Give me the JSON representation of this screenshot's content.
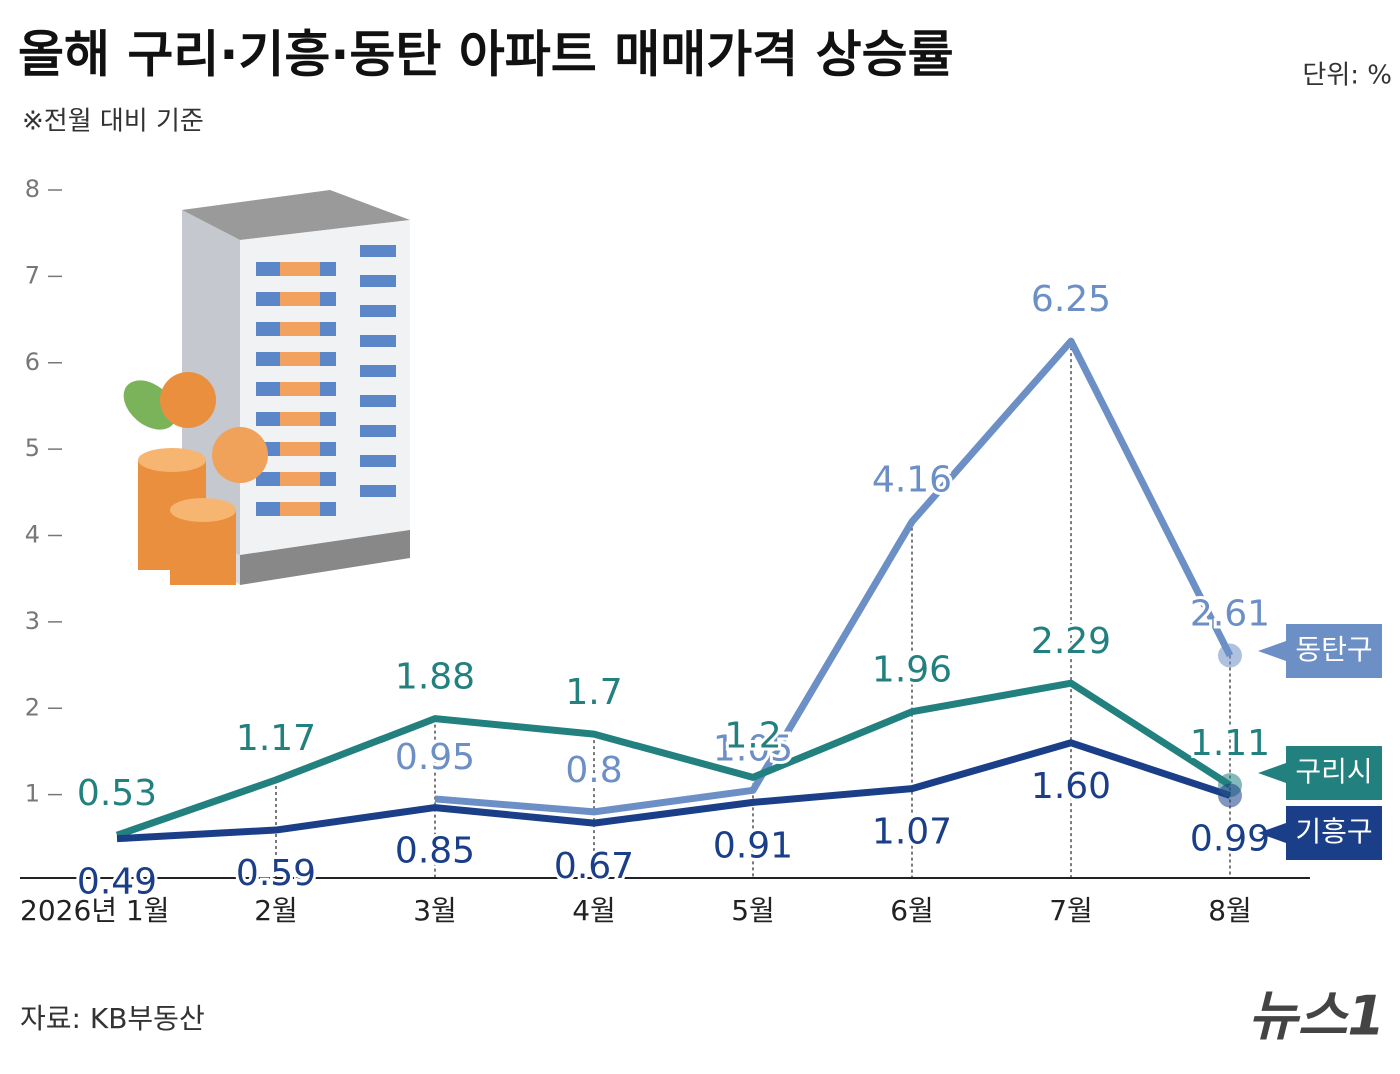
{
  "chart_data": {
    "type": "line",
    "title": "올해 구리·기흥·동탄 아파트 매매가격 상승률",
    "subtitle": "※전월 대비 기준",
    "unit": "단위: %",
    "source": "자료: KB부동산",
    "brand": "뉴스1",
    "categories": [
      "2026년 1월",
      "2월",
      "3월",
      "4월",
      "5월",
      "6월",
      "7월",
      "8월"
    ],
    "ylim": [
      0,
      8
    ],
    "yticks": [
      1,
      2,
      3,
      4,
      5,
      6,
      7,
      8
    ],
    "series": [
      {
        "name": "동탄구",
        "color": "#6c8fc6",
        "values": [
          null,
          null,
          0.95,
          0.8,
          1.05,
          4.16,
          6.25,
          2.61
        ]
      },
      {
        "name": "구리시",
        "color": "#22807f",
        "values": [
          0.53,
          1.17,
          1.88,
          1.7,
          1.2,
          1.96,
          2.29,
          1.11
        ]
      },
      {
        "name": "기흥구",
        "color": "#1a3f88",
        "values": [
          0.49,
          0.59,
          0.85,
          0.67,
          0.91,
          1.07,
          1.6,
          0.99
        ],
        "value_labels": [
          "0.49",
          "0.59",
          "0.85",
          "0.67",
          "0.91",
          "1.07",
          "1.60",
          "0.99"
        ]
      }
    ]
  }
}
